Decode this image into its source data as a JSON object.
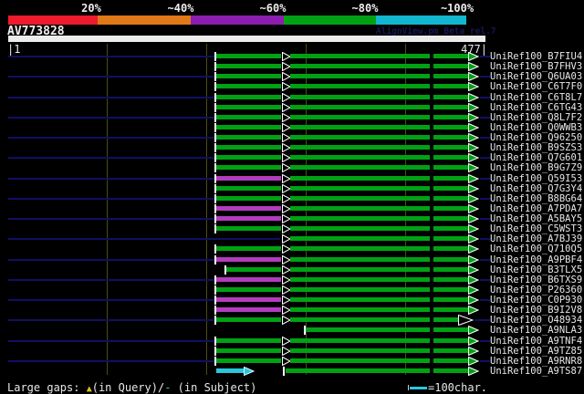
{
  "header": {
    "query_name": "AV773828",
    "app_credit": "AlignView.pm Beta rel.7"
  },
  "scale": {
    "segments": [
      {
        "label": "20%",
        "color": "#ee1b2d"
      },
      {
        "label": "~40%",
        "color": "#e07818"
      },
      {
        "label": "~60%",
        "color": "#8c1eaf"
      },
      {
        "label": "~80%",
        "color": "#00a214"
      },
      {
        "label": "~100%",
        "color": "#12b7cf"
      }
    ]
  },
  "ruler": {
    "start_label": "|1",
    "end_label": "477|"
  },
  "rows": [
    {
      "label": "UniRef100_B7FIU4",
      "seg1_color": "green",
      "variant": "standard",
      "flank_lines": true
    },
    {
      "label": "UniRef100_B7FHV3",
      "seg1_color": "green",
      "variant": "standard",
      "flank_lines": false
    },
    {
      "label": "UniRef100_Q6UA03",
      "seg1_color": "green",
      "variant": "standard",
      "flank_lines": true
    },
    {
      "label": "UniRef100_C6T7F0",
      "seg1_color": "green",
      "variant": "standard",
      "flank_lines": false
    },
    {
      "label": "UniRef100_C6T8L7",
      "seg1_color": "green",
      "variant": "standard",
      "flank_lines": true
    },
    {
      "label": "UniRef100_C6TG43",
      "seg1_color": "green",
      "variant": "standard",
      "flank_lines": false
    },
    {
      "label": "UniRef100_Q8L7F2",
      "seg1_color": "green",
      "variant": "standard",
      "flank_lines": true
    },
    {
      "label": "UniRef100_Q0WWB3",
      "seg1_color": "green",
      "variant": "standard",
      "flank_lines": false
    },
    {
      "label": "UniRef100_Q96250",
      "seg1_color": "green",
      "variant": "standard",
      "flank_lines": true
    },
    {
      "label": "UniRef100_B9SZS3",
      "seg1_color": "green",
      "variant": "standard",
      "flank_lines": false
    },
    {
      "label": "UniRef100_Q7G601",
      "seg1_color": "green",
      "variant": "standard",
      "flank_lines": true
    },
    {
      "label": "UniRef100_B9G7Z9",
      "seg1_color": "green",
      "variant": "standard",
      "flank_lines": false
    },
    {
      "label": "UniRef100_Q59I53",
      "seg1_color": "magenta",
      "variant": "standard",
      "flank_lines": true
    },
    {
      "label": "UniRef100_Q7G3Y4",
      "seg1_color": "green",
      "variant": "standard",
      "flank_lines": false
    },
    {
      "label": "UniRef100_B8BG64",
      "seg1_color": "green",
      "variant": "standard",
      "flank_lines": true
    },
    {
      "label": "UniRef100_A7PDA7",
      "seg1_color": "magenta",
      "variant": "standard",
      "flank_lines": false
    },
    {
      "label": "UniRef100_A5BAY5",
      "seg1_color": "magenta",
      "variant": "standard",
      "flank_lines": true
    },
    {
      "label": "UniRef100_C5WST3",
      "seg1_color": "green",
      "variant": "standard",
      "flank_lines": false
    },
    {
      "label": "UniRef100_A7BJ39",
      "seg1_color": "none",
      "variant": "long-lead",
      "flank_lines": true
    },
    {
      "label": "UniRef100_Q710Q5",
      "seg1_color": "green",
      "variant": "standard",
      "flank_lines": false
    },
    {
      "label": "UniRef100_A9PBF4",
      "seg1_color": "magenta",
      "variant": "standard",
      "flank_lines": true
    },
    {
      "label": "UniRef100_B3TLX5",
      "seg1_color": "green",
      "variant": "short-seg1",
      "flank_lines": false
    },
    {
      "label": "UniRef100_B6TXS9",
      "seg1_color": "magenta",
      "variant": "standard",
      "flank_lines": true
    },
    {
      "label": "UniRef100_P26360",
      "seg1_color": "green",
      "variant": "standard",
      "flank_lines": false
    },
    {
      "label": "UniRef100_C0P930",
      "seg1_color": "magenta",
      "variant": "standard",
      "flank_lines": true
    },
    {
      "label": "UniRef100_B9I2V8",
      "seg1_color": "magenta",
      "variant": "standard",
      "flank_lines": false
    },
    {
      "label": "UniRef100_O48934",
      "seg1_color": "green",
      "variant": "open-end-arrow",
      "flank_lines": true
    },
    {
      "label": "UniRef100_A9NLA3",
      "seg1_color": "none",
      "variant": "seg2-only",
      "flank_lines": false
    },
    {
      "label": "UniRef100_A9TNF4",
      "seg1_color": "green",
      "variant": "standard",
      "flank_lines": true
    },
    {
      "label": "UniRef100_A9TZ85",
      "seg1_color": "green",
      "variant": "standard",
      "flank_lines": false
    },
    {
      "label": "UniRef100_A9RNR8",
      "seg1_color": "green",
      "variant": "standard",
      "flank_lines": true
    },
    {
      "label": "UniRef100_A9TS87",
      "seg1_color": "cyan",
      "variant": "cyan-start",
      "flank_lines": false
    }
  ],
  "footer": {
    "left_parts": [
      {
        "text": "Large gaps: ",
        "color": "white"
      },
      {
        "text": "▲",
        "color": "yellow"
      },
      {
        "text": "(in Query)/",
        "color": "white"
      },
      {
        "text": "-",
        "color": "cyan"
      },
      {
        "text": " (in Subject)",
        "color": "white"
      }
    ],
    "right_label": "=100char."
  },
  "palette": {
    "green": "#00a214",
    "magenta": "#b23cbe",
    "cyan": "#28c8dc",
    "navy": "#101064",
    "white": "#e8e8e8",
    "yellow": "#d4c51e",
    "olive": "#4c4c14"
  }
}
